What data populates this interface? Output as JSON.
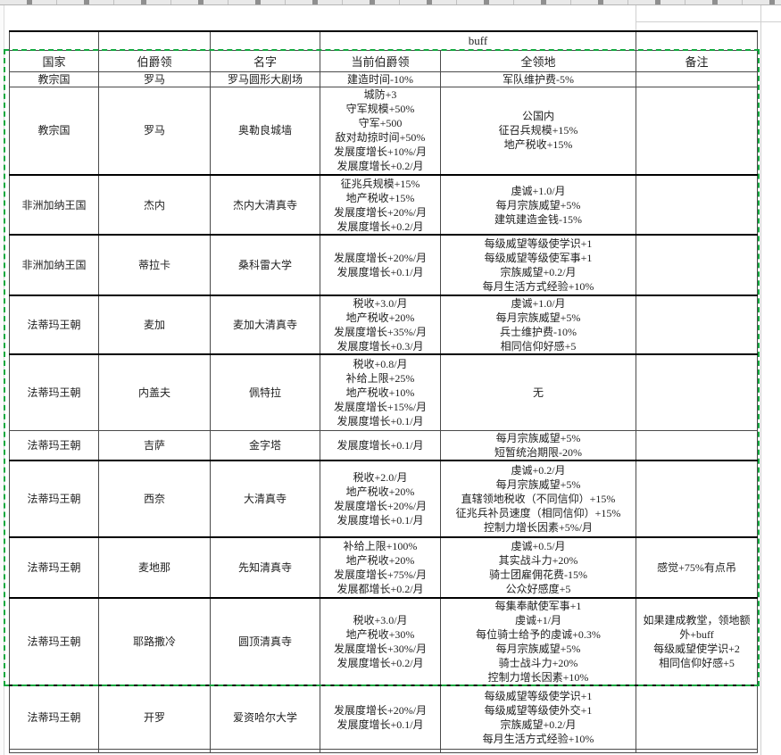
{
  "sheet": {
    "buff_label": "buff",
    "columns": [
      "国家",
      "伯爵领",
      "名字",
      "当前伯爵领",
      "全领地",
      "备注"
    ],
    "rows": [
      {
        "country": "教宗国",
        "county": "罗马",
        "name": "罗马圆形大剧场",
        "current": [
          "建造时间-10%"
        ],
        "all": [
          "军队维护费-5%"
        ],
        "note": []
      },
      {
        "country": "教宗国",
        "county": "罗马",
        "name": "奥勒良城墙",
        "current": [
          "城防+3",
          "守军规模+50%",
          "守军+500",
          "敌对劫掠时间+50%",
          "发展度增长+10%/月",
          "发展度增长+0.2/月"
        ],
        "all": [
          "公国内",
          "征召兵规模+15%",
          "地产税收+15%"
        ],
        "note": []
      },
      {
        "country": "非洲加纳王国",
        "county": "杰内",
        "name": "杰内大清真寺",
        "current": [
          "征兆兵规模+15%",
          "地产税收+15%",
          "发展度增长+20%/月",
          "发展度增长+0.2/月"
        ],
        "all": [
          "虔诚+1.0/月",
          "每月宗族威望+5%",
          "建筑建造金钱-15%"
        ],
        "note": []
      },
      {
        "country": "非洲加纳王国",
        "county": "蒂拉卡",
        "name": "桑科雷大学",
        "current": [
          "发展度增长+20%/月",
          "发展度增长+0.1/月"
        ],
        "all": [
          "每级威望等级使学识+1",
          "每级威望等级使军事+1",
          "宗族威望+0.2/月",
          "每月生活方式经验+10%"
        ],
        "note": []
      },
      {
        "country": "法蒂玛王朝",
        "county": "麦加",
        "name": "麦加大清真寺",
        "current": [
          "税收+3.0/月",
          "地产税收+20%",
          "发展度增长+35%/月",
          "发展度增长+0.3/月"
        ],
        "all": [
          "虔诚+1.0/月",
          "每月宗族威望+5%",
          "兵士维护费-10%",
          "相同信仰好感+5"
        ],
        "note": []
      },
      {
        "country": "法蒂玛王朝",
        "county": "内盖夫",
        "name": "佩特拉",
        "current": [
          "税收+0.8/月",
          "补给上限+25%",
          "地产税收+10%",
          "发展度增长+15%/月",
          "发展度增长+0.1/月"
        ],
        "all": [
          "无"
        ],
        "note": []
      },
      {
        "country": "法蒂玛王朝",
        "county": "吉萨",
        "name": "金字塔",
        "current": [
          "发展度增长+0.1/月"
        ],
        "all": [
          "每月宗族威望+5%",
          "短暂统治期限-20%"
        ],
        "note": []
      },
      {
        "country": "法蒂玛王朝",
        "county": "西奈",
        "name": "大清真寺",
        "current": [
          "税收+2.0/月",
          "地产税收+20%",
          "发展度增长+20%/月",
          "发展度增长+0.1/月"
        ],
        "all": [
          "虔诚+0.2/月",
          "每月宗族威望+5%",
          "直辖领地税收（不同信仰）+15%",
          "征兆兵补员速度（相同信仰）+15%",
          "控制力增长因素+5%/月"
        ],
        "note": []
      },
      {
        "country": "法蒂玛王朝",
        "county": "麦地那",
        "name": "先知清真寺",
        "current": [
          "补给上限+100%",
          "地产税收+20%",
          "发展度增长+75%/月",
          "发展都增长+0.2/月"
        ],
        "all": [
          "虔诚+0.5/月",
          "其实战斗力+20%",
          "骑士团雇佣花费-15%",
          "公众好感度+5"
        ],
        "note": [
          "感觉+75%有点吊"
        ]
      },
      {
        "country": "法蒂玛王朝",
        "county": "耶路撒冷",
        "name": "圆顶清真寺",
        "current": [
          "税收+3.0/月",
          "地产税收+30%",
          "发展度增长+30%/月",
          "发展度增长+0.2/月"
        ],
        "all": [
          "每集奉献使军事+1",
          "虔诚+1/月",
          "每位骑士给予的虔诚+0.3%",
          "每月宗族威望+5%",
          "骑士战斗力+20%",
          "控制力增长因素+10%"
        ],
        "note": [
          "如果建成教堂，领地额外+buff",
          "每级威望使学识+2",
          "相同信仰好感+5"
        ]
      },
      {
        "country": "法蒂玛王朝",
        "county": "开罗",
        "name": "爱资哈尔大学",
        "current": [
          "发展度增长+20%/月",
          "发展度增长+0.1/月"
        ],
        "all": [
          "每级威望等级使学识+1",
          "每级威望等级使外交+1",
          "宗族威望+0.2/月",
          "每月生活方式经验+10%"
        ],
        "note": []
      }
    ]
  },
  "colors": {
    "selection_green": "#11a83e",
    "grid_light": "#d0d0d0",
    "border_dark": "#000000"
  }
}
